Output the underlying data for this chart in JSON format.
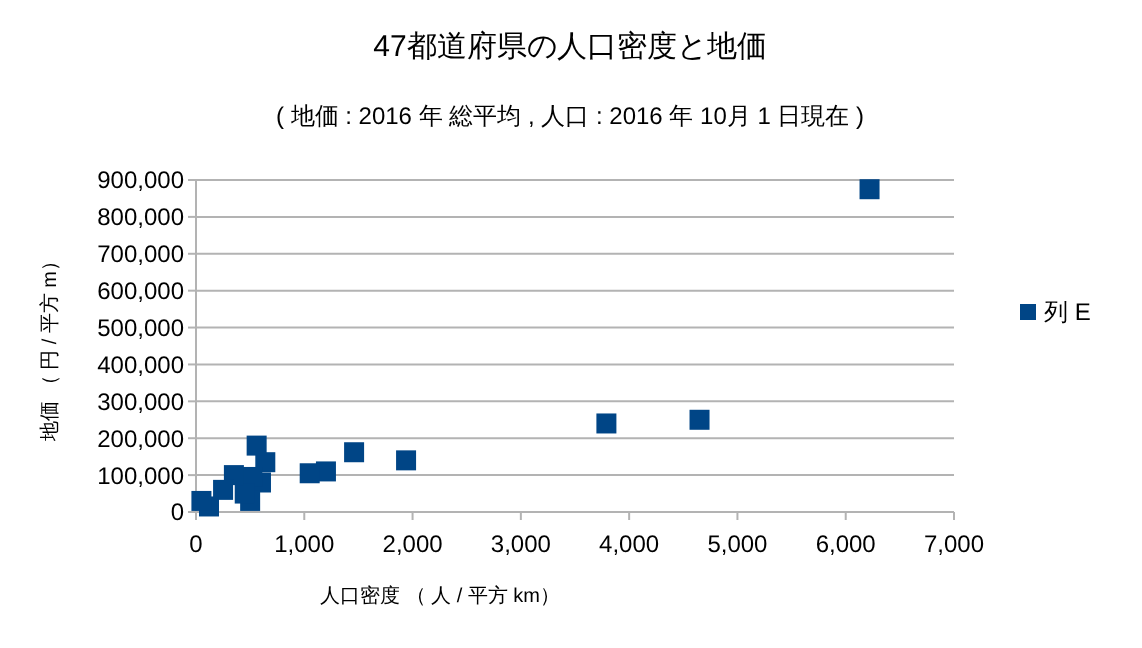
{
  "chart_data": {
    "type": "scatter",
    "title": "47都道府県の人口密度と地価",
    "subtitle": "( 地価 : 2016 年 総平均 , 人口 : 2016 年 10月 1 日現在  )",
    "xlabel": "人口密度 （ 人 / 平方 km）",
    "ylabel": "地価 （ 円 / 平方 m）",
    "xlim": [
      0,
      7000
    ],
    "xticks": [
      {
        "value": 0,
        "label": "0"
      },
      {
        "value": 1000,
        "label": "1,000"
      },
      {
        "value": 2000,
        "label": "2,000"
      },
      {
        "value": 3000,
        "label": "3,000"
      },
      {
        "value": 4000,
        "label": "4,000"
      },
      {
        "value": 5000,
        "label": "5,000"
      },
      {
        "value": 6000,
        "label": "6,000"
      },
      {
        "value": 7000,
        "label": "7,000"
      }
    ],
    "ylim": [
      0,
      900000
    ],
    "yticks": [
      {
        "value": 0,
        "label": "0"
      },
      {
        "value": 100000,
        "label": "100,000"
      },
      {
        "value": 200000,
        "label": "200,000"
      },
      {
        "value": 300000,
        "label": "300,000"
      },
      {
        "value": 400000,
        "label": "400,000"
      },
      {
        "value": 500000,
        "label": "500,000"
      },
      {
        "value": 600000,
        "label": "600,000"
      },
      {
        "value": 700000,
        "label": "700,000"
      },
      {
        "value": 800000,
        "label": "800,000"
      },
      {
        "value": 900000,
        "label": "900,000"
      }
    ],
    "grid": "y",
    "legend": "right",
    "marker": "square",
    "series": [
      {
        "name": "列 E",
        "color": "#004586",
        "x": [
          6220,
          4650,
          3790,
          1940,
          1460,
          1200,
          1050,
          640,
          560,
          600,
          520,
          500,
          450,
          350,
          250,
          120,
          50
        ],
        "values": [
          875000,
          250000,
          240000,
          140000,
          162000,
          110000,
          105000,
          135000,
          180000,
          80000,
          95000,
          30000,
          50000,
          100000,
          60000,
          15000,
          30000
        ]
      }
    ]
  }
}
